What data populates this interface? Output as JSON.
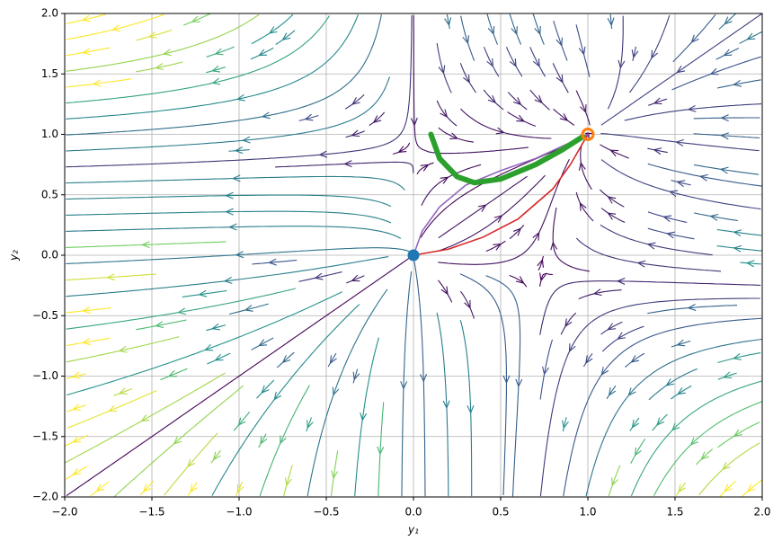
{
  "chart_data": {
    "type": "streamplot",
    "xlabel": "y₁",
    "ylabel": "y₂",
    "xlim": [
      -2,
      2
    ],
    "ylim": [
      -2,
      2
    ],
    "xticks": [
      {
        "value": -2,
        "label": "−2.0"
      },
      {
        "value": -1.5,
        "label": "−1.5"
      },
      {
        "value": -1,
        "label": "−1.0"
      },
      {
        "value": -0.5,
        "label": "−0.5"
      },
      {
        "value": 0,
        "label": "0.0"
      },
      {
        "value": 0.5,
        "label": "0.5"
      },
      {
        "value": 1,
        "label": "1.0"
      },
      {
        "value": 1.5,
        "label": "1.5"
      },
      {
        "value": 2,
        "label": "2.0"
      }
    ],
    "yticks": [
      {
        "value": -2,
        "label": "−2.0"
      },
      {
        "value": -1.5,
        "label": "−1.5"
      },
      {
        "value": -1,
        "label": "−1.0"
      },
      {
        "value": -0.5,
        "label": "−0.5"
      },
      {
        "value": 0,
        "label": "0.0"
      },
      {
        "value": 0.5,
        "label": "0.5"
      },
      {
        "value": 1,
        "label": "1.0"
      },
      {
        "value": 1.5,
        "label": "1.5"
      },
      {
        "value": 2,
        "label": "2.0"
      }
    ],
    "grid": true,
    "series": [
      {
        "color": "#d62728",
        "x": [
          0,
          0.2,
          0.4,
          0.6,
          0.8,
          0.9,
          1
        ],
        "values": [
          0,
          0.05,
          0.15,
          0.3,
          0.55,
          0.75,
          1
        ]
      },
      {
        "color": "#9467bd",
        "x": [
          0,
          0.05,
          0.15,
          0.3,
          0.5,
          0.7,
          0.85,
          1
        ],
        "values": [
          0,
          0.2,
          0.4,
          0.58,
          0.7,
          0.8,
          0.9,
          1
        ]
      },
      {
        "color": "#2ca02c",
        "x": [
          0.1,
          0.15,
          0.25,
          0.35,
          0.5,
          0.7,
          0.85,
          0.97
        ],
        "values": [
          1.0,
          0.8,
          0.65,
          0.6,
          0.63,
          0.75,
          0.87,
          0.98
        ]
      }
    ],
    "points": [
      {
        "color": "#1f77b4",
        "x": 0,
        "y": 0
      },
      {
        "color": "#ff7f0e",
        "x": 1,
        "y": 1
      }
    ]
  }
}
